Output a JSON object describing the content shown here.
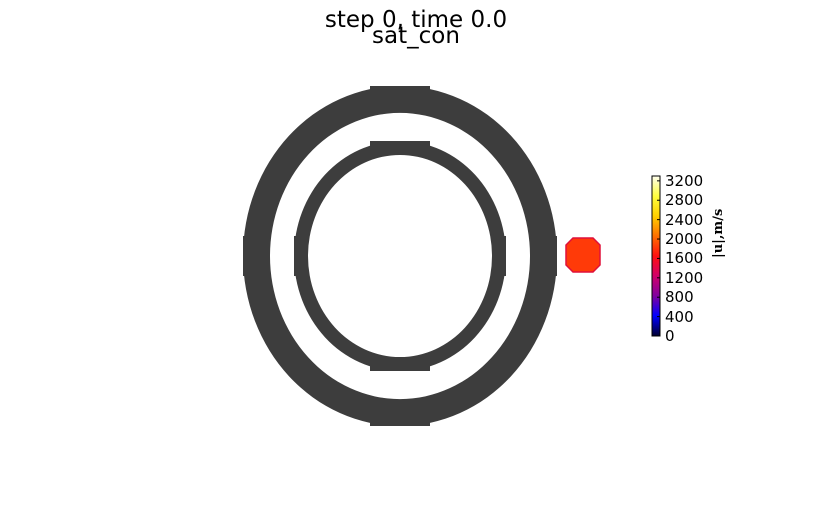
{
  "suptitle": "step 0, time 0.0",
  "title": "sat_con",
  "chart_data": {
    "type": "heatmap",
    "title": "sat_con",
    "suptitle": "step 0, time 0.0",
    "shapes": [
      {
        "name": "outer-ring",
        "kind": "ring",
        "value": null,
        "color": "#3d3d3d"
      },
      {
        "name": "inner-ring",
        "kind": "ring",
        "value": null,
        "color": "#3d3d3d"
      },
      {
        "name": "particle",
        "kind": "octagon",
        "value": 2100,
        "color": "#ff3a08"
      }
    ],
    "colorbar": {
      "label": "|u|,m/s",
      "ticks": [
        "0",
        "400",
        "800",
        "1200",
        "1600",
        "2000",
        "2400",
        "2800",
        "3200"
      ],
      "range": [
        0,
        3300
      ],
      "colormap": [
        "#000030",
        "#0000ff",
        "#8000a0",
        "#d0006a",
        "#ff1010",
        "#ff7000",
        "#ffd000",
        "#ffff40",
        "#fffff0"
      ]
    }
  }
}
